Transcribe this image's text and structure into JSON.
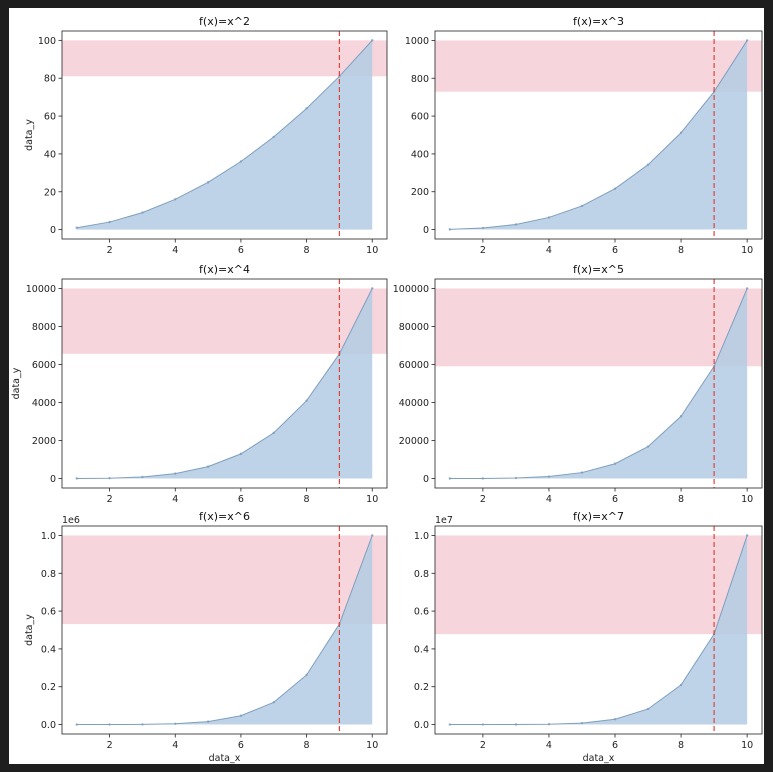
{
  "chart_data": [
    {
      "type": "area",
      "title": "f(x)=x^2",
      "xlabel": "",
      "ylabel": "data_y",
      "x": [
        1,
        2,
        3,
        4,
        5,
        6,
        7,
        8,
        9,
        10
      ],
      "values": [
        1,
        4,
        9,
        16,
        25,
        36,
        49,
        64,
        81,
        100
      ],
      "xlim": [
        0.55,
        10.45
      ],
      "ylim": [
        -4.95,
        104.95
      ],
      "xticks": [
        2,
        4,
        6,
        8,
        10
      ],
      "xtick_labels": [
        "2",
        "4",
        "6",
        "8",
        "10"
      ],
      "yticks": [
        0,
        20,
        40,
        60,
        80,
        100
      ],
      "ytick_labels": [
        "0",
        "20",
        "40",
        "60",
        "80",
        "100"
      ],
      "offset_text": "",
      "vline_x": 9,
      "hspan": [
        81,
        100
      ]
    },
    {
      "type": "area",
      "title": "f(x)=x^3",
      "xlabel": "",
      "ylabel": "",
      "x": [
        1,
        2,
        3,
        4,
        5,
        6,
        7,
        8,
        9,
        10
      ],
      "values": [
        1,
        8,
        27,
        64,
        125,
        216,
        343,
        512,
        729,
        1000
      ],
      "xlim": [
        0.55,
        10.45
      ],
      "ylim": [
        -49.95,
        1049.95
      ],
      "xticks": [
        2,
        4,
        6,
        8,
        10
      ],
      "xtick_labels": [
        "2",
        "4",
        "6",
        "8",
        "10"
      ],
      "yticks": [
        0,
        200,
        400,
        600,
        800,
        1000
      ],
      "ytick_labels": [
        "0",
        "200",
        "400",
        "600",
        "800",
        "1000"
      ],
      "offset_text": "",
      "vline_x": 9,
      "hspan": [
        729,
        1000
      ]
    },
    {
      "type": "area",
      "title": "f(x)=x^4",
      "xlabel": "",
      "ylabel": "data_y",
      "x": [
        1,
        2,
        3,
        4,
        5,
        6,
        7,
        8,
        9,
        10
      ],
      "values": [
        1,
        16,
        81,
        256,
        625,
        1296,
        2401,
        4096,
        6561,
        10000
      ],
      "xlim": [
        0.55,
        10.45
      ],
      "ylim": [
        -499.95,
        10499.95
      ],
      "xticks": [
        2,
        4,
        6,
        8,
        10
      ],
      "xtick_labels": [
        "2",
        "4",
        "6",
        "8",
        "10"
      ],
      "yticks": [
        0,
        2000,
        4000,
        6000,
        8000,
        10000
      ],
      "ytick_labels": [
        "0",
        "2000",
        "4000",
        "6000",
        "8000",
        "10000"
      ],
      "offset_text": "",
      "vline_x": 9,
      "hspan": [
        6561,
        10000
      ]
    },
    {
      "type": "area",
      "title": "f(x)=x^5",
      "xlabel": "",
      "ylabel": "",
      "x": [
        1,
        2,
        3,
        4,
        5,
        6,
        7,
        8,
        9,
        10
      ],
      "values": [
        1,
        32,
        243,
        1024,
        3125,
        7776,
        16807,
        32768,
        59049,
        100000
      ],
      "xlim": [
        0.55,
        10.45
      ],
      "ylim": [
        -4999.95,
        104999.95
      ],
      "xticks": [
        2,
        4,
        6,
        8,
        10
      ],
      "xtick_labels": [
        "2",
        "4",
        "6",
        "8",
        "10"
      ],
      "yticks": [
        0,
        20000,
        40000,
        60000,
        80000,
        100000
      ],
      "ytick_labels": [
        "0",
        "20000",
        "40000",
        "60000",
        "80000",
        "100000"
      ],
      "offset_text": "",
      "vline_x": 9,
      "hspan": [
        59049,
        100000
      ]
    },
    {
      "type": "area",
      "title": "f(x)=x^6",
      "xlabel": "data_x",
      "ylabel": "data_y",
      "x": [
        1,
        2,
        3,
        4,
        5,
        6,
        7,
        8,
        9,
        10
      ],
      "values": [
        1,
        64,
        729,
        4096,
        15625,
        46656,
        117649,
        262144,
        531441,
        1000000
      ],
      "xlim": [
        0.55,
        10.45
      ],
      "ylim": [
        -49999.95,
        1049999.95
      ],
      "xticks": [
        2,
        4,
        6,
        8,
        10
      ],
      "xtick_labels": [
        "2",
        "4",
        "6",
        "8",
        "10"
      ],
      "yticks": [
        0,
        200000,
        400000,
        600000,
        800000,
        1000000
      ],
      "ytick_labels": [
        "0.0",
        "0.2",
        "0.4",
        "0.6",
        "0.8",
        "1.0"
      ],
      "offset_text": "1e6",
      "vline_x": 9,
      "hspan": [
        531441,
        1000000
      ]
    },
    {
      "type": "area",
      "title": "f(x)=x^7",
      "xlabel": "data_x",
      "ylabel": "",
      "x": [
        1,
        2,
        3,
        4,
        5,
        6,
        7,
        8,
        9,
        10
      ],
      "values": [
        1,
        128,
        2187,
        16384,
        78125,
        279936,
        823543,
        2097152,
        4782969,
        10000000
      ],
      "xlim": [
        0.55,
        10.45
      ],
      "ylim": [
        -499999.95,
        10499999.95
      ],
      "xticks": [
        2,
        4,
        6,
        8,
        10
      ],
      "xtick_labels": [
        "2",
        "4",
        "6",
        "8",
        "10"
      ],
      "yticks": [
        0,
        2000000,
        4000000,
        6000000,
        8000000,
        10000000
      ],
      "ytick_labels": [
        "0.0",
        "0.2",
        "0.4",
        "0.6",
        "0.8",
        "1.0"
      ],
      "offset_text": "1e7",
      "vline_x": 9,
      "hspan": [
        4782969,
        10000000
      ]
    }
  ],
  "colors": {
    "fill": "#b3cbe3",
    "line": "#7f9fbf",
    "hspan": "#f4c3ce",
    "vline": "#e0453a"
  }
}
